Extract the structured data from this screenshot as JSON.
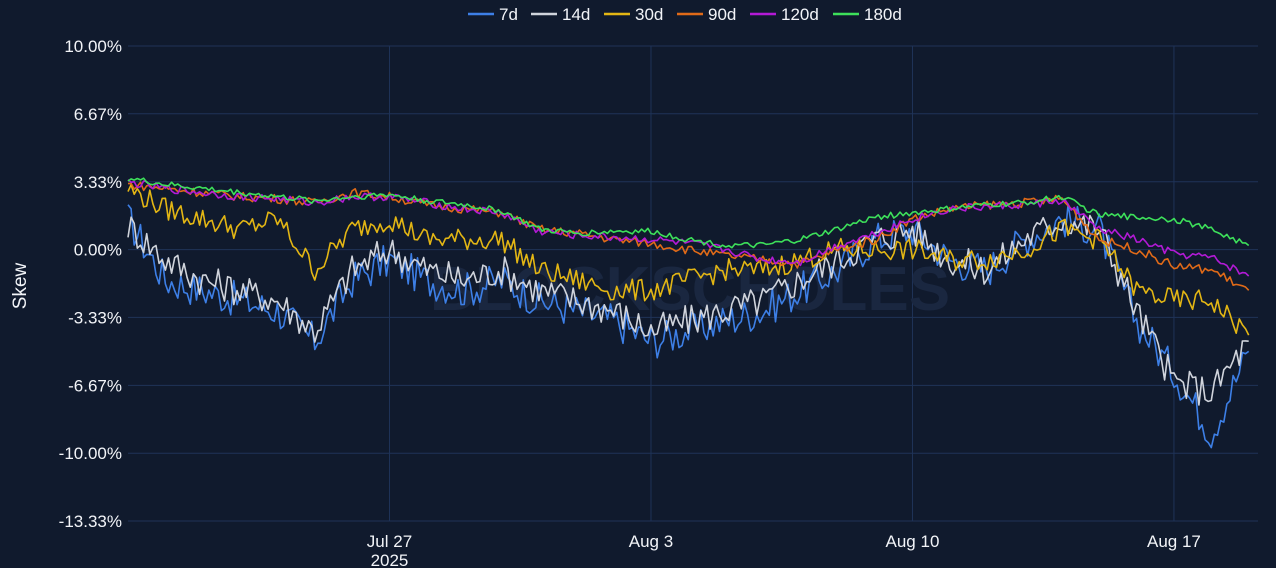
{
  "chart_data": {
    "type": "line",
    "title": "",
    "xlabel": "",
    "ylabel": "Skew",
    "x_range": [
      "2025-07-20T00:00",
      "2025-08-19T06:00"
    ],
    "ylim": [
      -13.33,
      10.0
    ],
    "y_ticks": [
      {
        "value": 10.0,
        "label": "10.00%"
      },
      {
        "value": 6.67,
        "label": "6.67%"
      },
      {
        "value": 3.33,
        "label": "3.33%"
      },
      {
        "value": 0.0,
        "label": "0.00%"
      },
      {
        "value": -3.33,
        "label": "-3.33%"
      },
      {
        "value": -6.67,
        "label": "-6.67%"
      },
      {
        "value": -10.0,
        "label": "-10.00%"
      },
      {
        "value": -13.33,
        "label": "-13.33%"
      }
    ],
    "x_ticks": [
      {
        "date": "2025-07-27",
        "label": "Jul 27",
        "sublabel": "2025"
      },
      {
        "date": "2025-08-03",
        "label": "Aug 3",
        "sublabel": ""
      },
      {
        "date": "2025-08-10",
        "label": "Aug 10",
        "sublabel": ""
      },
      {
        "date": "2025-08-17",
        "label": "Aug 17",
        "sublabel": ""
      }
    ],
    "grid": true,
    "legend_position": "top-center",
    "watermark": "BLOCKSCHOLES",
    "x": [
      "2025-07-20",
      "2025-07-21",
      "2025-07-22",
      "2025-07-23",
      "2025-07-24",
      "2025-07-25",
      "2025-07-26",
      "2025-07-27",
      "2025-07-28",
      "2025-07-29",
      "2025-07-30",
      "2025-07-31",
      "2025-08-01",
      "2025-08-02",
      "2025-08-03",
      "2025-08-04",
      "2025-08-05",
      "2025-08-06",
      "2025-08-07",
      "2025-08-08",
      "2025-08-09",
      "2025-08-10",
      "2025-08-11",
      "2025-08-12",
      "2025-08-13",
      "2025-08-14",
      "2025-08-15",
      "2025-08-16",
      "2025-08-17",
      "2025-08-18",
      "2025-08-19"
    ],
    "series": [
      {
        "name": "7d",
        "color": "#3d7fe6",
        "values": [
          1.5,
          -1.5,
          -2.0,
          -2.5,
          -3.0,
          -4.5,
          -1.5,
          -0.5,
          -1.5,
          -2.0,
          -1.5,
          -2.5,
          -3.0,
          -3.5,
          -4.5,
          -4.0,
          -3.5,
          -3.0,
          -2.0,
          -1.0,
          0.5,
          1.0,
          -0.5,
          -1.0,
          0.5,
          1.5,
          1.0,
          -3.5,
          -6.0,
          -9.0,
          -5.0
        ]
      },
      {
        "name": "14d",
        "color": "#d0d4dc",
        "values": [
          1.2,
          -0.5,
          -1.5,
          -2.0,
          -2.5,
          -4.0,
          -1.0,
          0.0,
          -1.0,
          -1.5,
          -1.0,
          -2.0,
          -2.5,
          -3.0,
          -4.0,
          -3.5,
          -3.0,
          -2.5,
          -1.5,
          -0.5,
          0.5,
          1.0,
          -0.5,
          -1.0,
          0.5,
          1.5,
          1.0,
          -3.0,
          -6.5,
          -7.0,
          -4.5
        ]
      },
      {
        "name": "30d",
        "color": "#e3b614",
        "values": [
          3.0,
          2.0,
          1.5,
          1.0,
          1.5,
          -1.0,
          1.0,
          1.5,
          0.5,
          0.5,
          0.5,
          -1.0,
          -1.5,
          -2.0,
          -2.0,
          -1.5,
          -1.0,
          -1.0,
          -0.5,
          0.0,
          0.0,
          0.0,
          -0.5,
          -0.5,
          0.0,
          1.0,
          0.5,
          -2.0,
          -2.5,
          -2.5,
          -4.2
        ]
      },
      {
        "name": "90d",
        "color": "#e06a18",
        "values": [
          3.2,
          3.0,
          2.8,
          2.6,
          2.5,
          2.3,
          2.8,
          2.6,
          2.2,
          2.0,
          1.8,
          1.0,
          0.8,
          0.5,
          0.3,
          0.0,
          -0.3,
          -0.5,
          -0.7,
          0.0,
          0.5,
          1.5,
          2.0,
          2.2,
          2.3,
          2.5,
          0.5,
          0.0,
          -0.8,
          -1.0,
          -2.0
        ]
      },
      {
        "name": "120d",
        "color": "#b31ad6",
        "values": [
          3.3,
          3.0,
          2.8,
          2.6,
          2.5,
          2.3,
          2.6,
          2.6,
          2.3,
          2.0,
          1.8,
          0.9,
          0.7,
          0.6,
          0.5,
          0.3,
          0.0,
          -0.5,
          -0.6,
          0.2,
          0.8,
          1.5,
          2.0,
          2.1,
          2.2,
          2.4,
          1.0,
          0.5,
          -0.2,
          -0.4,
          -1.3
        ]
      },
      {
        "name": "180d",
        "color": "#3de05a",
        "values": [
          3.5,
          3.2,
          3.0,
          2.8,
          2.6,
          2.4,
          2.6,
          2.7,
          2.4,
          2.2,
          1.9,
          1.0,
          0.8,
          0.9,
          0.9,
          0.5,
          0.2,
          0.2,
          0.5,
          1.0,
          1.6,
          1.8,
          2.0,
          2.2,
          2.3,
          2.6,
          1.7,
          1.6,
          1.5,
          1.0,
          0.2
        ]
      }
    ]
  }
}
